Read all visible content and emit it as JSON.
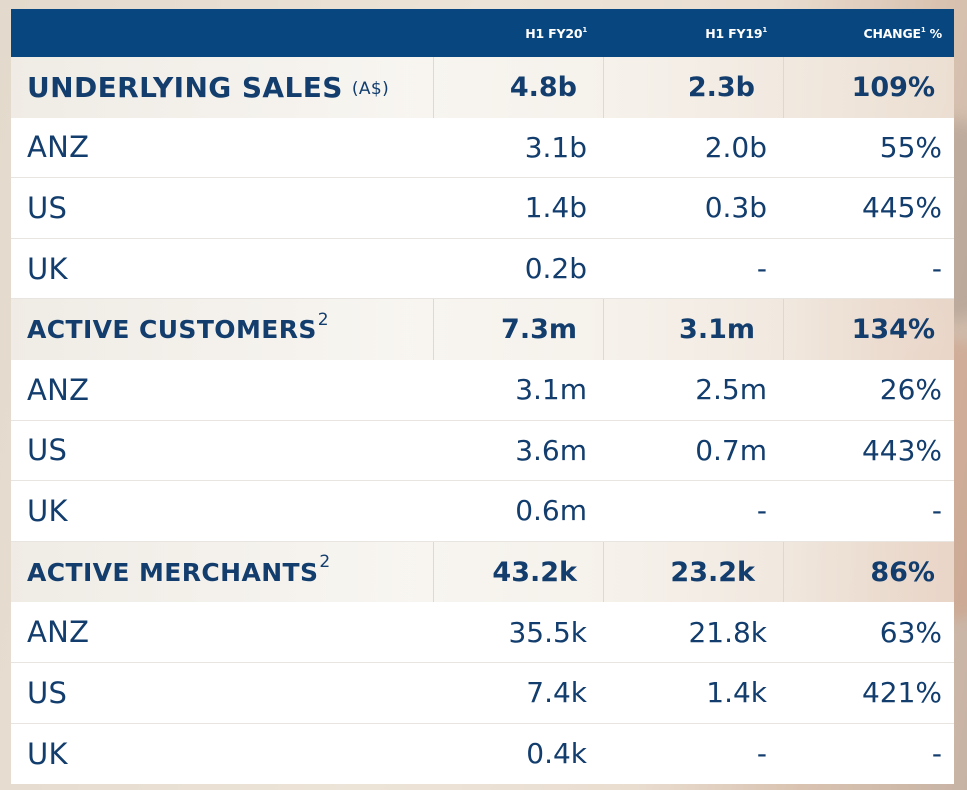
{
  "header": {
    "col1": "H1 FY20",
    "col1_sup": "1",
    "col2": "H1 FY19",
    "col2_sup": "1",
    "col3_pre": "CHANGE",
    "col3_sup": "1",
    "col3_post": " %"
  },
  "sections": [
    {
      "title": "UNDERLYING SALES",
      "unit": "(A$)",
      "sup": "",
      "h1fy20": "4.8b",
      "h1fy19": "2.3b",
      "change": "109%",
      "rows": [
        {
          "region": "ANZ",
          "h1fy20": "3.1b",
          "h1fy19": "2.0b",
          "change": "55%"
        },
        {
          "region": "US",
          "h1fy20": "1.4b",
          "h1fy19": "0.3b",
          "change": "445%"
        },
        {
          "region": "UK",
          "h1fy20": "0.2b",
          "h1fy19": "-",
          "change": "-"
        }
      ]
    },
    {
      "title": "ACTIVE CUSTOMERS",
      "unit": "",
      "sup": "2",
      "h1fy20": "7.3m",
      "h1fy19": "3.1m",
      "change": "134%",
      "rows": [
        {
          "region": "ANZ",
          "h1fy20": "3.1m",
          "h1fy19": "2.5m",
          "change": "26%"
        },
        {
          "region": "US",
          "h1fy20": "3.6m",
          "h1fy19": "0.7m",
          "change": "443%"
        },
        {
          "region": "UK",
          "h1fy20": "0.6m",
          "h1fy19": "-",
          "change": "-"
        }
      ]
    },
    {
      "title": "ACTIVE MERCHANTS",
      "unit": "",
      "sup": "2",
      "h1fy20": "43.2k",
      "h1fy19": "23.2k",
      "change": "86%",
      "rows": [
        {
          "region": "ANZ",
          "h1fy20": "35.5k",
          "h1fy19": "21.8k",
          "change": "63%"
        },
        {
          "region": "US",
          "h1fy20": "7.4k",
          "h1fy19": "1.4k",
          "change": "421%"
        },
        {
          "region": "UK",
          "h1fy20": "0.4k",
          "h1fy19": "-",
          "change": "-"
        }
      ]
    }
  ],
  "colors": {
    "header_bg": "#07467f",
    "text": "#123d6d",
    "row_bg": "#ffffff"
  }
}
